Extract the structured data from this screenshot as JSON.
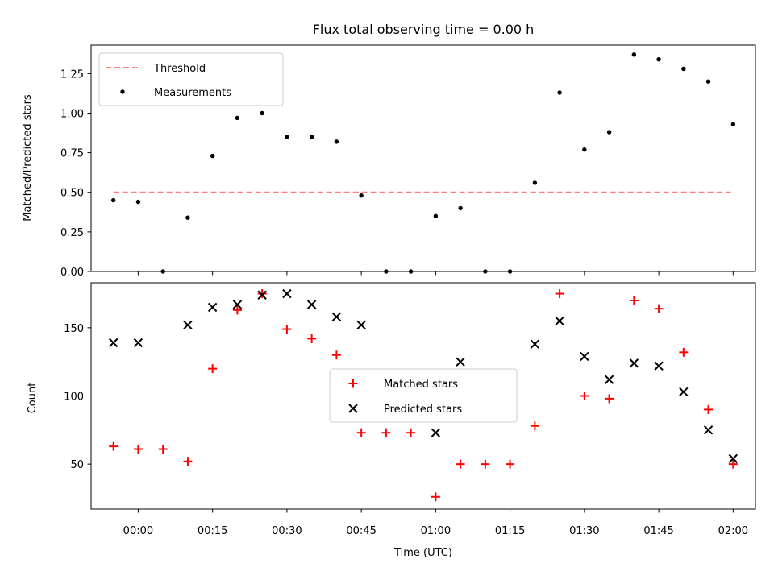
{
  "chart_data": [
    {
      "type": "scatter",
      "title": "Flux total observing time = 0.00 h",
      "xlabel": "",
      "ylabel": "Matched/Predicted stars",
      "ylim": [
        0,
        1.43
      ],
      "yticks": [
        "0.00",
        "0.25",
        "0.50",
        "0.75",
        "1.00",
        "1.25"
      ],
      "legend_position": "upper-left",
      "threshold": {
        "name": "Threshold",
        "color": "#ff7f7f",
        "value": 0.5,
        "x_start": -5,
        "x_end": 120
      },
      "series": [
        {
          "name": "Measurements",
          "color": "#000000",
          "marker": "dot",
          "x": [
            -5,
            0,
            5,
            10,
            15,
            20,
            25,
            30,
            35,
            40,
            45,
            50,
            55,
            60,
            65,
            70,
            75,
            80,
            85,
            90,
            95,
            100,
            105,
            110,
            115,
            120
          ],
          "y": [
            0.45,
            0.44,
            0.0,
            0.34,
            0.73,
            0.97,
            1.0,
            0.85,
            0.85,
            0.82,
            0.48,
            0.0,
            0.0,
            0.35,
            0.4,
            0.0,
            0.0,
            0.56,
            1.13,
            0.77,
            0.88,
            1.37,
            1.34,
            1.28,
            1.2,
            0.93
          ]
        }
      ]
    },
    {
      "type": "scatter",
      "title": "",
      "xlabel": "Time (UTC)",
      "ylabel": "Count",
      "ylim": [
        17,
        183
      ],
      "yticks": [
        "50",
        "100",
        "150"
      ],
      "xticks": [
        "00:00",
        "00:15",
        "00:30",
        "00:45",
        "01:00",
        "01:15",
        "01:30",
        "01:45",
        "02:00"
      ],
      "legend_position": "center",
      "series": [
        {
          "name": "Matched stars",
          "color": "#ff0000",
          "marker": "plus",
          "x": [
            -5,
            0,
            5,
            10,
            15,
            20,
            25,
            30,
            35,
            40,
            45,
            50,
            55,
            60,
            65,
            70,
            75,
            80,
            85,
            90,
            95,
            100,
            105,
            110,
            115,
            120
          ],
          "y": [
            63,
            61,
            61,
            52,
            120,
            163,
            175,
            149,
            142,
            130,
            73,
            73,
            73,
            26,
            50,
            50,
            50,
            78,
            175,
            100,
            98,
            170,
            164,
            132,
            90,
            50
          ]
        },
        {
          "name": "Predicted stars",
          "color": "#000000",
          "marker": "x",
          "x": [
            -5,
            0,
            10,
            15,
            20,
            25,
            30,
            35,
            40,
            45,
            60,
            65,
            80,
            85,
            90,
            95,
            100,
            105,
            110,
            115,
            120
          ],
          "y": [
            139,
            139,
            152,
            165,
            167,
            174,
            175,
            167,
            158,
            152,
            73,
            125,
            138,
            155,
            129,
            112,
            124,
            122,
            103,
            75,
            54
          ]
        }
      ]
    }
  ]
}
